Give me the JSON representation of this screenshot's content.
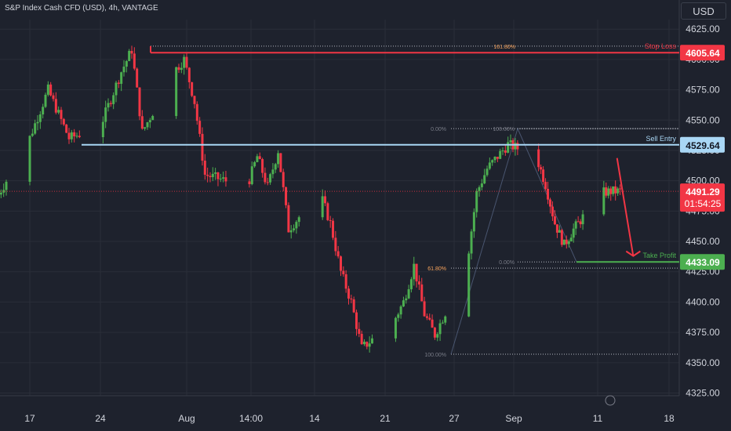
{
  "header": {
    "title": "S&P Index Cash CFD (USD), 4h, VANTAGE",
    "currency": "USD"
  },
  "colors": {
    "background": "#1e222d",
    "up": "#4caf50",
    "down": "#f23645",
    "grid": "#2a2e39",
    "axis_text": "#d1d4dc",
    "entry": "#a9d7f5",
    "stop": "#f23645",
    "target": "#4caf50",
    "fib": "#b2b5be"
  },
  "chart_data": {
    "type": "candlestick",
    "symbol": "S&P Index Cash CFD (USD)",
    "timeframe": "4h",
    "broker": "VANTAGE",
    "ylim": [
      4315,
      4630
    ],
    "y_ticks": [
      "4625.00",
      "4600.00",
      "4575.00",
      "4550.00",
      "4525.00",
      "4500.00",
      "4475.00",
      "4450.00",
      "4425.00",
      "4400.00",
      "4375.00",
      "4350.00",
      "4325.00"
    ],
    "x_ticks": [
      "17",
      "24",
      "Aug",
      "14:00",
      "14",
      "21",
      "27",
      "Sep",
      "11",
      "18"
    ],
    "price_path": [
      {
        "t": "Jul 14",
        "v": 4485
      },
      {
        "t": "Jul 17",
        "v": 4530
      },
      {
        "t": "Jul 19",
        "v": 4575
      },
      {
        "t": "Jul 21",
        "v": 4535
      },
      {
        "t": "Jul 24",
        "v": 4545
      },
      {
        "t": "Jul 26",
        "v": 4590
      },
      {
        "t": "Jul 27",
        "v": 4608
      },
      {
        "t": "Jul 28",
        "v": 4540
      },
      {
        "t": "Jul 31",
        "v": 4590
      },
      {
        "t": "Aug 1",
        "v": 4600
      },
      {
        "t": "Aug 2",
        "v": 4565
      },
      {
        "t": "Aug 3",
        "v": 4505
      },
      {
        "t": "Aug 7",
        "v": 4495
      },
      {
        "t": "Aug 8",
        "v": 4520
      },
      {
        "t": "Aug 9",
        "v": 4495
      },
      {
        "t": "Aug 10",
        "v": 4525
      },
      {
        "t": "Aug 11",
        "v": 4460
      },
      {
        "t": "Aug 14",
        "v": 4490
      },
      {
        "t": "Aug 15",
        "v": 4465
      },
      {
        "t": "Aug 16",
        "v": 4425
      },
      {
        "t": "Aug 17",
        "v": 4400
      },
      {
        "t": "Aug 18",
        "v": 4362
      },
      {
        "t": "Aug 21",
        "v": 4383
      },
      {
        "t": "Aug 22",
        "v": 4400
      },
      {
        "t": "Aug 23",
        "v": 4430
      },
      {
        "t": "Aug 24",
        "v": 4390
      },
      {
        "t": "Aug 25",
        "v": 4373
      },
      {
        "t": "Aug 28",
        "v": 4428
      },
      {
        "t": "Aug 29",
        "v": 4490
      },
      {
        "t": "Aug 30",
        "v": 4510
      },
      {
        "t": "Sep 1",
        "v": 4530
      },
      {
        "t": "Sep 4",
        "v": 4520
      },
      {
        "t": "Sep 5",
        "v": 4497
      },
      {
        "t": "Sep 6",
        "v": 4465
      },
      {
        "t": "Sep 7",
        "v": 4447
      },
      {
        "t": "Sep 8",
        "v": 4460
      },
      {
        "t": "Sep 11",
        "v": 4490
      },
      {
        "t": "Sep 12",
        "v": 4491.29
      }
    ],
    "levels": [
      {
        "name": "stop-loss",
        "label": "Stop Loss",
        "value": 4605.64,
        "value_text": "4605.64"
      },
      {
        "name": "sell-entry",
        "label": "Sell Entry",
        "value": 4529.64,
        "value_text": "4529.64"
      },
      {
        "name": "take-profit",
        "label": "Take Profit",
        "value": 4433.09,
        "value_text": "4433.09"
      }
    ],
    "last_price": {
      "value": 4491.29,
      "value_text": "4491.29",
      "countdown": "01:54:25"
    },
    "fib_left": [
      {
        "label": "161.80%",
        "value": 4611
      },
      {
        "label": "0.00%",
        "value": 4543
      },
      {
        "label": "61.80%",
        "value": 4428
      },
      {
        "label": "100.00%",
        "value": 4357
      }
    ],
    "fib_right": [
      {
        "label": "100.00%",
        "value": 4543
      },
      {
        "label": "0.00%",
        "value": 4433.09
      }
    ],
    "arrow": {
      "from": {
        "t": "Sep 12",
        "v": 4520
      },
      "to": {
        "t": "Sep 15",
        "v": 4438
      },
      "color": "#f23645"
    }
  }
}
